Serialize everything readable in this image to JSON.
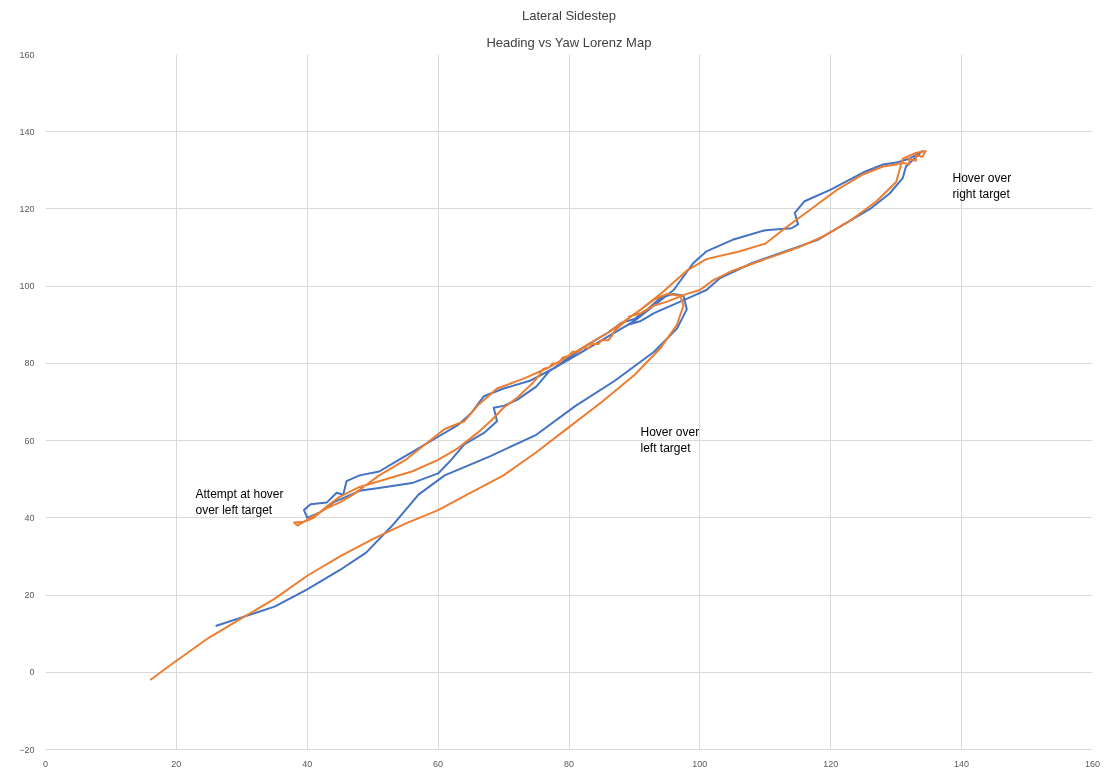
{
  "chart_data": {
    "type": "line",
    "title": "Lateral Sidestep",
    "subtitle": "Heading vs Yaw Lorenz Map",
    "xlim": [
      0,
      160
    ],
    "ylim": [
      -20,
      160
    ],
    "xticks": [
      0,
      20,
      40,
      60,
      80,
      100,
      120,
      140,
      160
    ],
    "yticks": [
      -20,
      0,
      20,
      40,
      60,
      80,
      100,
      120,
      140,
      160
    ],
    "grid": true,
    "marker": "none",
    "line_style": "solid",
    "series": [
      {
        "color": "#4472c4",
        "x": [
          26,
          35,
          40,
          45,
          49,
          53,
          57,
          61,
          68,
          75,
          81,
          87,
          93,
          96.5,
          98,
          97.5,
          96,
          94,
          92,
          90,
          88,
          86,
          83,
          80,
          77,
          75,
          72,
          70,
          68.5,
          69,
          67,
          64,
          62,
          60,
          56,
          52,
          48,
          46,
          44,
          42,
          40,
          39.5,
          40.5,
          43,
          44.5,
          45.5,
          46,
          48,
          51,
          54,
          57,
          60,
          63,
          65,
          67,
          70,
          74,
          78,
          82,
          86,
          90,
          93,
          96,
          99,
          101,
          105,
          110,
          114,
          115,
          114.5,
          116,
          120,
          125,
          128,
          130,
          132,
          134,
          131.5,
          131,
          129,
          126,
          122,
          118,
          113,
          108,
          103,
          101,
          99,
          97,
          95,
          93,
          91,
          89,
          87
        ],
        "values": [
          12,
          17,
          21.5,
          26.5,
          31,
          38,
          46,
          51,
          56,
          61.5,
          69,
          75.5,
          83,
          89,
          94,
          97.5,
          98,
          97,
          94,
          91.5,
          90.5,
          88,
          85,
          81.5,
          78,
          74,
          70.5,
          69,
          68.5,
          65,
          62,
          59,
          55,
          51.5,
          49,
          48,
          47,
          45.5,
          44,
          41.5,
          40,
          42,
          43.5,
          44,
          46.5,
          46,
          49.5,
          51,
          52,
          55,
          58,
          61,
          64,
          67,
          71.5,
          73.5,
          75.5,
          79,
          83,
          87,
          91,
          95,
          99,
          106,
          109,
          112,
          114.5,
          115,
          116,
          119,
          122,
          125,
          129.5,
          131.5,
          132,
          133,
          135,
          131,
          128,
          124,
          120,
          116,
          112,
          109,
          106,
          102,
          99,
          97.5,
          96,
          94.5,
          93,
          91,
          90,
          88
        ]
      },
      {
        "color": "#ed7d31",
        "x": [
          16,
          20,
          25,
          30,
          35,
          40,
          45,
          50,
          55,
          60,
          65,
          70,
          75,
          80,
          85,
          90,
          94,
          96.5,
          97.5,
          97,
          95,
          93,
          91,
          89,
          87,
          86.5,
          86,
          85,
          84.5,
          83.5,
          83,
          82,
          81.5,
          80.5,
          80,
          79,
          78.5,
          77.5,
          77,
          76,
          75.5,
          74.5,
          72,
          70,
          68,
          66,
          63,
          60,
          56,
          52,
          48,
          45,
          43,
          41,
          39.5,
          38.5,
          38,
          39.5,
          41,
          43,
          45,
          47,
          49,
          51,
          55,
          58,
          61,
          64,
          66,
          69,
          73,
          77,
          81,
          86,
          91,
          94,
          96,
          98,
          101,
          106,
          110,
          113,
          117,
          121,
          125,
          128,
          130,
          131,
          132,
          132,
          133,
          133,
          134,
          134.5,
          133,
          131,
          130.5,
          130,
          127,
          123,
          119,
          115,
          110,
          105,
          102,
          100,
          98,
          95,
          93,
          91,
          89
        ],
        "values": [
          -2,
          3,
          9,
          14,
          19,
          25,
          30,
          34.5,
          38.5,
          42,
          46.5,
          51,
          57,
          63.5,
          70,
          77,
          84,
          90,
          95,
          97.5,
          98,
          96.5,
          94,
          91.5,
          88.5,
          87,
          86,
          86,
          85,
          85,
          84,
          84,
          83,
          83,
          82,
          81.5,
          80,
          80,
          79,
          78.5,
          77,
          75,
          71,
          68.5,
          65,
          62,
          58,
          55,
          52,
          50,
          48,
          45.5,
          43,
          40,
          39,
          38,
          38.8,
          39,
          40.5,
          42.5,
          44,
          46,
          48.5,
          51,
          55,
          59,
          63,
          65,
          69,
          73.5,
          76,
          79,
          83,
          88,
          94,
          98,
          101,
          104,
          107,
          109,
          111,
          115,
          120,
          125,
          129,
          131,
          131.5,
          132,
          131.5,
          133,
          132.5,
          134,
          133.5,
          135,
          134.5,
          133,
          130,
          127,
          122,
          117,
          113,
          110,
          107,
          104,
          101.5,
          99,
          98,
          96,
          95,
          93,
          92
        ]
      }
    ],
    "annotations": [
      "Attempt at hover\nover left target",
      "Hover over\nleft target",
      "Hover over\nright target"
    ]
  }
}
